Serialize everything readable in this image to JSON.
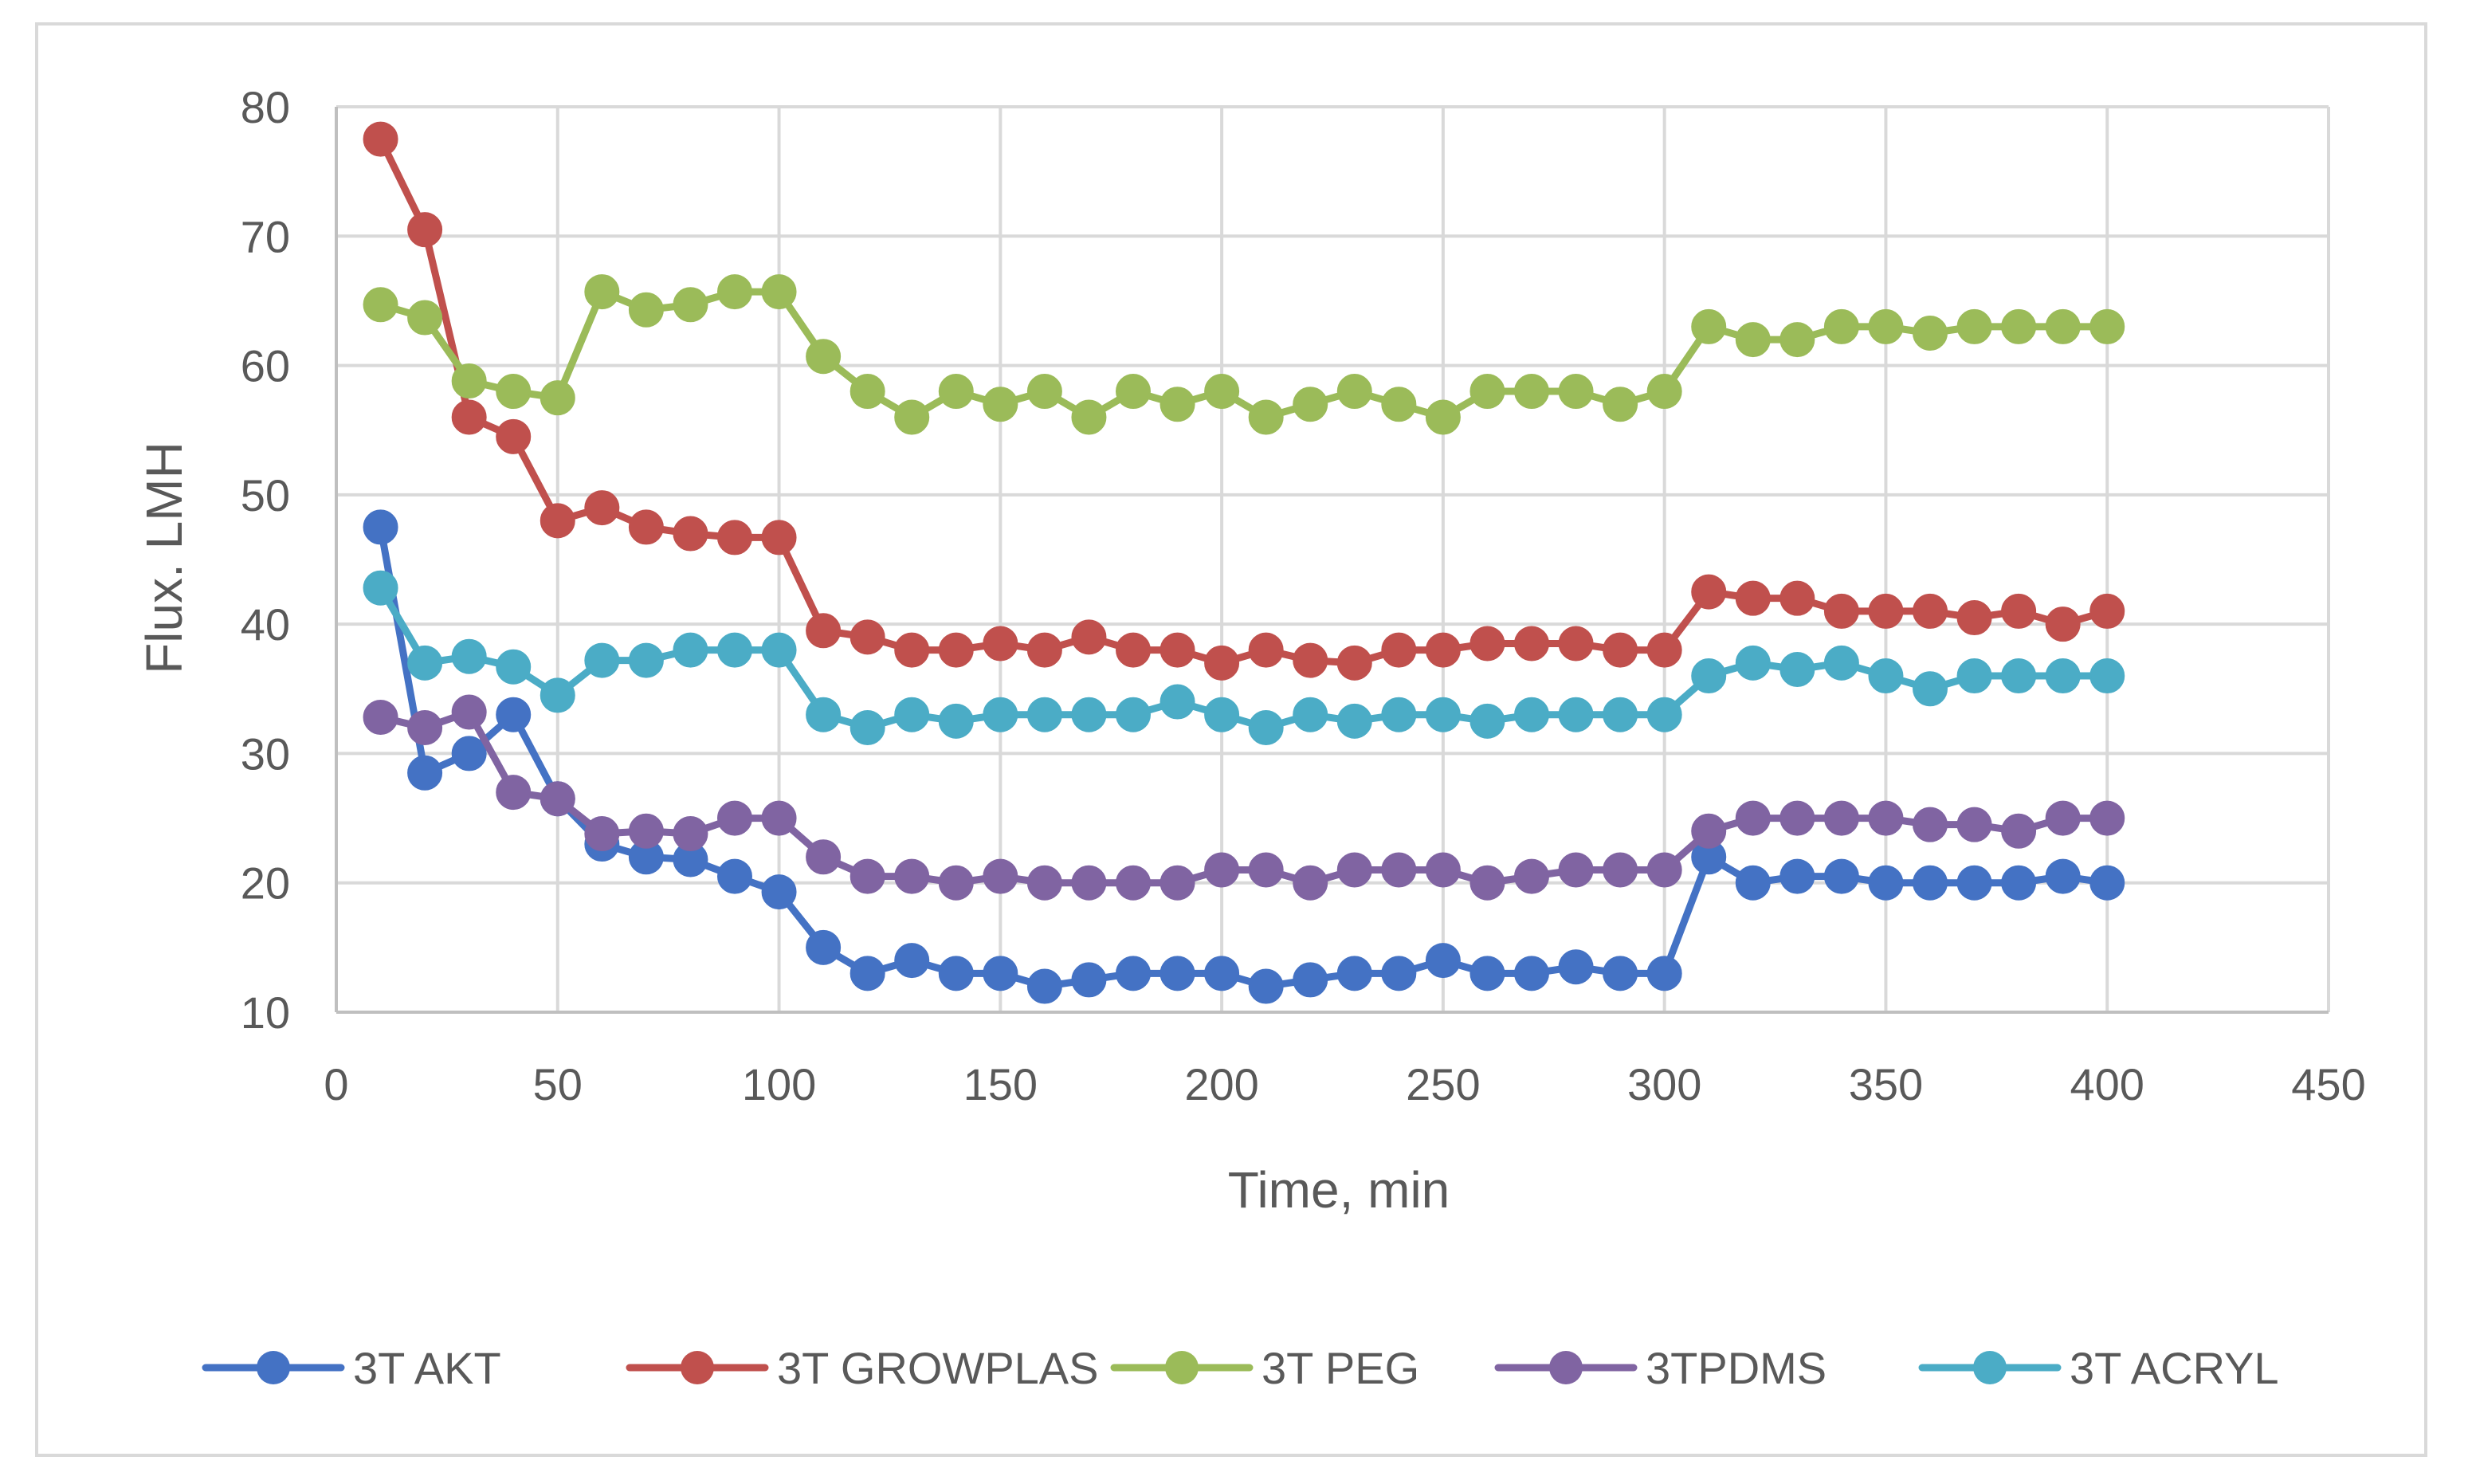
{
  "chart_data": {
    "type": "line",
    "title": "",
    "xlabel": "Time, min",
    "ylabel": "Flux. LMH",
    "xlim": [
      0,
      450
    ],
    "ylim": [
      10,
      80
    ],
    "xticks": [
      0,
      50,
      100,
      150,
      200,
      250,
      300,
      350,
      400,
      450
    ],
    "yticks": [
      10,
      20,
      30,
      40,
      50,
      60,
      70,
      80
    ],
    "grid": true,
    "legend_position": "bottom",
    "x": [
      10,
      20,
      30,
      40,
      50,
      60,
      70,
      80,
      90,
      100,
      110,
      120,
      130,
      140,
      150,
      160,
      170,
      180,
      190,
      200,
      210,
      220,
      230,
      240,
      250,
      260,
      270,
      280,
      290,
      300,
      310,
      320,
      330,
      340,
      350,
      360,
      370,
      380,
      390,
      400
    ],
    "series": [
      {
        "name": "3T AKT",
        "color": "#4472c4",
        "values": [
          47.5,
          28.5,
          30,
          33,
          26.5,
          23,
          22,
          21.8,
          20.5,
          19.3,
          15,
          13,
          14,
          13,
          13,
          12,
          12.5,
          13,
          13,
          13,
          12,
          12.5,
          13,
          13,
          14,
          13,
          13,
          13.5,
          13,
          13,
          22,
          20,
          20.5,
          20.5,
          20,
          20,
          20,
          20,
          20.5,
          20
        ]
      },
      {
        "name": "3T GROWPLAS",
        "color": "#c0504d",
        "values": [
          77.5,
          70.5,
          56,
          54.5,
          48,
          49,
          47.5,
          47,
          46.7,
          46.7,
          39.5,
          39,
          38,
          38,
          38.5,
          38,
          39,
          38,
          38,
          37,
          38,
          37.2,
          37,
          38,
          38,
          38.5,
          38.5,
          38.5,
          38,
          38,
          42.5,
          42,
          42,
          41,
          41,
          41,
          40.5,
          41,
          40,
          41
        ]
      },
      {
        "name": "3T PEG",
        "color": "#9bbb59",
        "values": [
          64.7,
          63.7,
          58.8,
          58,
          57.5,
          65.7,
          64.3,
          64.7,
          65.7,
          65.7,
          60.7,
          58,
          56,
          58,
          57,
          58,
          56,
          58,
          57,
          58,
          56,
          57,
          58,
          57,
          56,
          58,
          58,
          58,
          57,
          58,
          63,
          62,
          62,
          63,
          63,
          62.5,
          63,
          63,
          63,
          63
        ]
      },
      {
        "name": "3TPDMS",
        "color": "#8064a2",
        "values": [
          32.8,
          32,
          33.2,
          27,
          26.5,
          23.8,
          24,
          23.8,
          25,
          25,
          22,
          20.5,
          20.5,
          20,
          20.5,
          20,
          20,
          20,
          20,
          21,
          21,
          20,
          21,
          21,
          21,
          20,
          20.5,
          21,
          21,
          21,
          24,
          25,
          25,
          25,
          25,
          24.5,
          24.5,
          24,
          25,
          25
        ]
      },
      {
        "name": "3T ACRYL",
        "color": "#4bacc6",
        "values": [
          42.8,
          37,
          37.5,
          36.7,
          34.5,
          37.2,
          37.2,
          38,
          38,
          38,
          33,
          32,
          33,
          32.5,
          33,
          33,
          33,
          33,
          34,
          33,
          32,
          33,
          32.5,
          33,
          33,
          32.5,
          33,
          33,
          33,
          33,
          36,
          37,
          36.5,
          37,
          36,
          35,
          36,
          36,
          36,
          36
        ]
      }
    ]
  }
}
